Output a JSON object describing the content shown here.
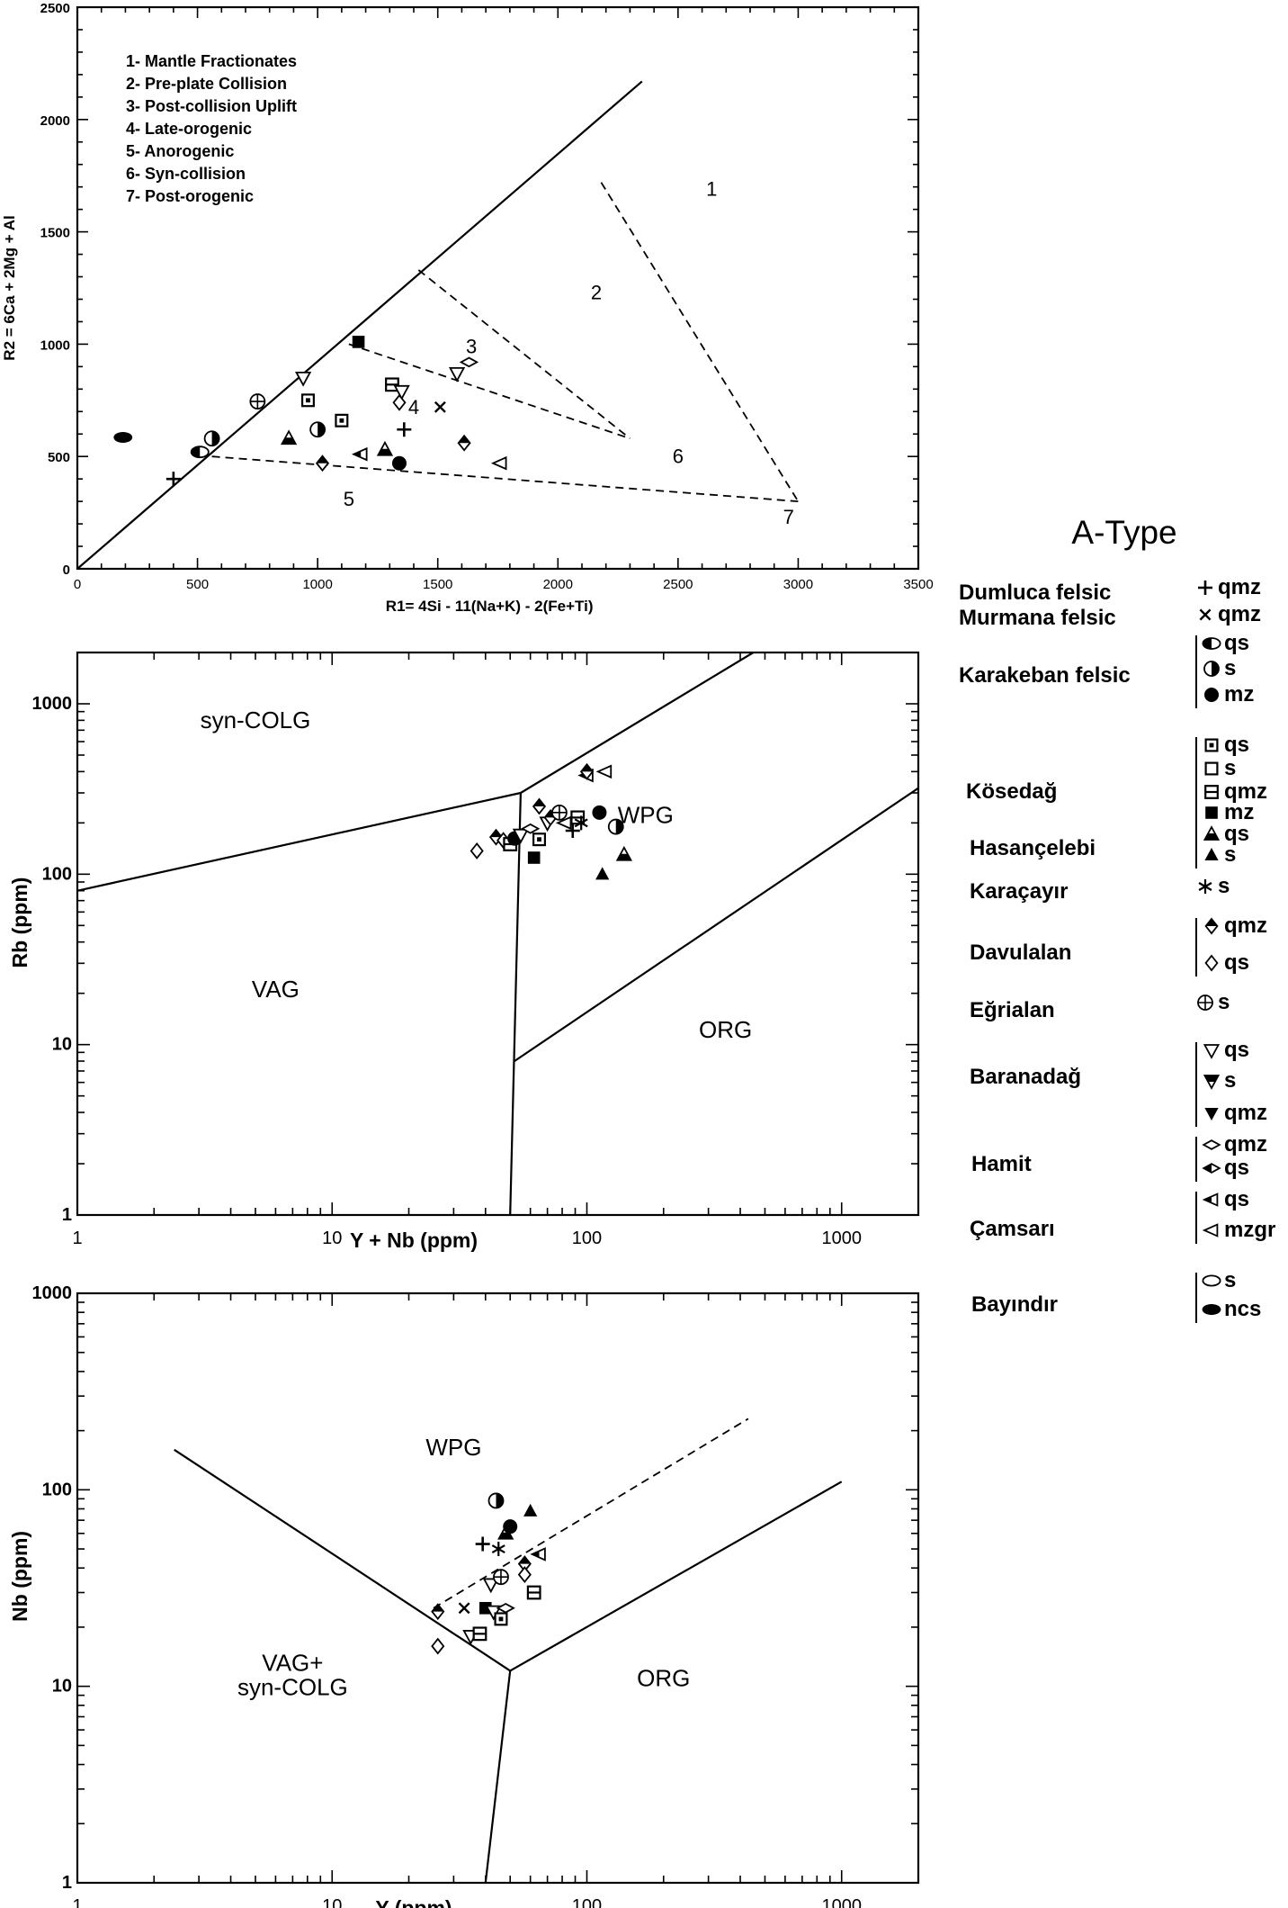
{
  "chart_data": [
    {
      "type": "scatter",
      "title": "",
      "xlabel": "R1= 4Si - 11(Na+K) - 2(Fe+Ti)",
      "ylabel": "R2 = 6Ca + 2Mg + Al",
      "xlim": [
        0,
        3500
      ],
      "ylim": [
        0,
        2500
      ],
      "xticks": [
        "0",
        "500",
        "1000",
        "1500",
        "2000",
        "2500",
        "3000",
        "3500"
      ],
      "yticks": [
        "0",
        "500",
        "1000",
        "1500",
        "2000",
        "2500"
      ],
      "legend": [
        "1- Mantle Fractionates",
        "2- Pre-plate Collision",
        "3- Post-collision Uplift",
        "4- Late-orogenic",
        "5- Anorogenic",
        "6- Syn-collision",
        "7- Post-orogenic"
      ],
      "field_labels": [
        {
          "text": "1",
          "x": 2640,
          "y": 1660
        },
        {
          "text": "2",
          "x": 2160,
          "y": 1200
        },
        {
          "text": "3",
          "x": 1640,
          "y": 960
        },
        {
          "text": "4",
          "x": 1400,
          "y": 690
        },
        {
          "text": "5",
          "x": 1130,
          "y": 280
        },
        {
          "text": "6",
          "x": 2500,
          "y": 470
        },
        {
          "text": "7",
          "x": 2960,
          "y": 200
        }
      ],
      "lines": [
        {
          "style": "solid",
          "points": [
            [
              0,
              0
            ],
            [
              2350,
              2170
            ]
          ]
        },
        {
          "style": "dashed",
          "points": [
            [
              1130,
              1000
            ],
            [
              2300,
              580
            ]
          ]
        },
        {
          "style": "dashed",
          "points": [
            [
              1420,
              1330
            ],
            [
              2300,
              580
            ]
          ]
        },
        {
          "style": "dashed",
          "points": [
            [
              2180,
              1720
            ],
            [
              3000,
              300
            ]
          ]
        },
        {
          "style": "dashed",
          "points": [
            [
              560,
              500
            ],
            [
              3000,
              300
            ]
          ]
        }
      ],
      "points": [
        {
          "x": 190,
          "y": 585,
          "s": "filled-ellipse"
        },
        {
          "x": 510,
          "y": 520,
          "s": "half-ellipse"
        },
        {
          "x": 560,
          "y": 580,
          "s": "half-circle"
        },
        {
          "x": 400,
          "y": 400,
          "s": "plus"
        },
        {
          "x": 750,
          "y": 745,
          "s": "circle-plus"
        },
        {
          "x": 940,
          "y": 850,
          "s": "tri-down-open"
        },
        {
          "x": 960,
          "y": 750,
          "s": "square-dot"
        },
        {
          "x": 1000,
          "y": 620,
          "s": "half-circle"
        },
        {
          "x": 1100,
          "y": 660,
          "s": "square-dot"
        },
        {
          "x": 1170,
          "y": 1010,
          "s": "square-filled"
        },
        {
          "x": 1310,
          "y": 820,
          "s": "square-lined"
        },
        {
          "x": 880,
          "y": 580,
          "s": "tri-half"
        },
        {
          "x": 1020,
          "y": 470,
          "s": "diamond-half"
        },
        {
          "x": 1180,
          "y": 510,
          "s": "tri-left-half"
        },
        {
          "x": 1280,
          "y": 530,
          "s": "tri-half"
        },
        {
          "x": 1340,
          "y": 470,
          "s": "filled-circle"
        },
        {
          "x": 1350,
          "y": 790,
          "s": "tri-down-open"
        },
        {
          "x": 1340,
          "y": 740,
          "s": "diamond-open"
        },
        {
          "x": 1360,
          "y": 620,
          "s": "plus"
        },
        {
          "x": 1510,
          "y": 720,
          "s": "x"
        },
        {
          "x": 1580,
          "y": 870,
          "s": "tri-down-open"
        },
        {
          "x": 1630,
          "y": 920,
          "s": "hamit-open"
        },
        {
          "x": 1610,
          "y": 560,
          "s": "diamond-half"
        },
        {
          "x": 1760,
          "y": 470,
          "s": "tri-left-open"
        }
      ]
    },
    {
      "type": "scatter",
      "title": "",
      "xlabel": "Y + Nb (ppm)",
      "ylabel": "Rb (ppm)",
      "xscale": "log",
      "yscale": "log",
      "xlim": [
        1,
        2000
      ],
      "ylim": [
        1,
        2000
      ],
      "xticks": [
        "1",
        "10",
        "100",
        "1000"
      ],
      "yticks": [
        "1",
        "10",
        "100",
        "1000"
      ],
      "field_labels": [
        {
          "text": "syn-COLG",
          "x": 5,
          "y": 720
        },
        {
          "text": "WPG",
          "x": 170,
          "y": 200
        },
        {
          "text": "VAG",
          "x": 6,
          "y": 19
        },
        {
          "text": "ORG",
          "x": 350,
          "y": 11
        }
      ],
      "lines": [
        {
          "style": "solid",
          "points": [
            [
              1,
              80
            ],
            [
              55,
              300
            ]
          ]
        },
        {
          "style": "solid",
          "points": [
            [
              55,
              300
            ],
            [
              50,
              1
            ]
          ]
        },
        {
          "style": "solid",
          "points": [
            [
              55,
              300
            ],
            [
              450,
              2000
            ]
          ]
        },
        {
          "style": "solid",
          "points": [
            [
              52,
              8
            ],
            [
              2000,
              320
            ]
          ]
        }
      ],
      "points": [
        {
          "x": 37,
          "y": 137,
          "s": "diamond-open"
        },
        {
          "x": 44,
          "y": 165,
          "s": "diamond-half"
        },
        {
          "x": 47,
          "y": 158,
          "s": "diamond-open"
        },
        {
          "x": 50,
          "y": 150,
          "s": "square-lined"
        },
        {
          "x": 52,
          "y": 162,
          "s": "filled-circle"
        },
        {
          "x": 55,
          "y": 170,
          "s": "tri-down-open"
        },
        {
          "x": 60,
          "y": 185,
          "s": "hamit-open"
        },
        {
          "x": 62,
          "y": 125,
          "s": "square-filled"
        },
        {
          "x": 65,
          "y": 160,
          "s": "square-dot"
        },
        {
          "x": 65,
          "y": 250,
          "s": "diamond-half"
        },
        {
          "x": 70,
          "y": 200,
          "s": "tri-down-open"
        },
        {
          "x": 72,
          "y": 215,
          "s": "diamond-half"
        },
        {
          "x": 78,
          "y": 230,
          "s": "circle-plus"
        },
        {
          "x": 82,
          "y": 200,
          "s": "tri-left-open"
        },
        {
          "x": 88,
          "y": 180,
          "s": "plus"
        },
        {
          "x": 92,
          "y": 215,
          "s": "square-lined"
        },
        {
          "x": 95,
          "y": 200,
          "s": "star"
        },
        {
          "x": 100,
          "y": 380,
          "s": "tri-left-half"
        },
        {
          "x": 100,
          "y": 400,
          "s": "diamond-half"
        },
        {
          "x": 118,
          "y": 400,
          "s": "tri-left-open"
        },
        {
          "x": 112,
          "y": 230,
          "s": "filled-circle"
        },
        {
          "x": 130,
          "y": 190,
          "s": "half-circle"
        },
        {
          "x": 140,
          "y": 130,
          "s": "tri-half"
        },
        {
          "x": 115,
          "y": 100,
          "s": "tri-filled"
        }
      ]
    },
    {
      "type": "scatter",
      "title": "",
      "xlabel": "Y (ppm)",
      "ylabel": "Nb (ppm)",
      "xscale": "log",
      "yscale": "log",
      "xlim": [
        1,
        2000
      ],
      "ylim": [
        1,
        1000
      ],
      "xticks": [
        "1",
        "10",
        "100",
        "1000"
      ],
      "yticks": [
        "1",
        "10",
        "100",
        "1000"
      ],
      "field_labels": [
        {
          "text": "WPG",
          "x": 30,
          "y": 150
        },
        {
          "text": "VAG+",
          "x": 7,
          "y": 12
        },
        {
          "text": "syn-COLG",
          "x": 7,
          "y": 9
        },
        {
          "text": "ORG",
          "x": 200,
          "y": 10
        }
      ],
      "lines": [
        {
          "style": "solid",
          "points": [
            [
              2.4,
              160
            ],
            [
              50,
              12
            ]
          ]
        },
        {
          "style": "solid",
          "points": [
            [
              50,
              12
            ],
            [
              1000,
              110
            ]
          ]
        },
        {
          "style": "solid",
          "points": [
            [
              50,
              12
            ],
            [
              40,
              1
            ]
          ]
        },
        {
          "style": "dashed",
          "points": [
            [
              25,
              25
            ],
            [
              430,
              230
            ]
          ]
        }
      ],
      "points": [
        {
          "x": 26,
          "y": 16,
          "s": "diamond-open"
        },
        {
          "x": 26,
          "y": 24,
          "s": "diamond-half"
        },
        {
          "x": 33,
          "y": 25,
          "s": "x"
        },
        {
          "x": 35,
          "y": 18,
          "s": "tri-down-open"
        },
        {
          "x": 38,
          "y": 18.5,
          "s": "square-lined"
        },
        {
          "x": 40,
          "y": 25,
          "s": "square-filled"
        },
        {
          "x": 43,
          "y": 24,
          "s": "tri-down-open"
        },
        {
          "x": 42,
          "y": 33,
          "s": "tri-down-open"
        },
        {
          "x": 46,
          "y": 22,
          "s": "square-dot"
        },
        {
          "x": 48,
          "y": 25,
          "s": "hamit-open"
        },
        {
          "x": 46,
          "y": 36,
          "s": "circle-plus"
        },
        {
          "x": 39,
          "y": 53,
          "s": "plus"
        },
        {
          "x": 45,
          "y": 50,
          "s": "star"
        },
        {
          "x": 44,
          "y": 88,
          "s": "half-circle"
        },
        {
          "x": 48,
          "y": 60,
          "s": "tri-half"
        },
        {
          "x": 50,
          "y": 65,
          "s": "filled-circle"
        },
        {
          "x": 57,
          "y": 42,
          "s": "diamond-half"
        },
        {
          "x": 57,
          "y": 37,
          "s": "diamond-open"
        },
        {
          "x": 60,
          "y": 78,
          "s": "tri-filled"
        },
        {
          "x": 62,
          "y": 30,
          "s": "square-lined"
        },
        {
          "x": 65,
          "y": 47,
          "s": "tri-left-half"
        }
      ]
    }
  ],
  "legend_panel": {
    "title": "A-Type",
    "groups": [
      {
        "name": "Dumluca felsic",
        "entries": [
          {
            "sym": "plus",
            "label": "qmz"
          }
        ]
      },
      {
        "name": "Murmana felsic",
        "entries": [
          {
            "sym": "x",
            "label": "qmz"
          }
        ]
      },
      {
        "name": "Karakeban felsic",
        "entries": [
          {
            "sym": "half-ellipse",
            "label": "qs"
          },
          {
            "sym": "half-circle",
            "label": "s"
          },
          {
            "sym": "filled-circle",
            "label": "mz"
          }
        ]
      },
      {
        "name": "Kösedağ",
        "entries": [
          {
            "sym": "square-dot",
            "label": "qs"
          },
          {
            "sym": "square-open",
            "label": "s"
          },
          {
            "sym": "square-lined",
            "label": "qmz"
          },
          {
            "sym": "square-filled",
            "label": "mz"
          }
        ]
      },
      {
        "name": "Hasançelebi",
        "entries": [
          {
            "sym": "tri-half",
            "label": "qs"
          },
          {
            "sym": "tri-filled",
            "label": "s"
          }
        ]
      },
      {
        "name": "Karaçayır",
        "entries": [
          {
            "sym": "star",
            "label": "s"
          }
        ]
      },
      {
        "name": "Davulalan",
        "entries": [
          {
            "sym": "diamond-half",
            "label": "qmz"
          },
          {
            "sym": "diamond-open",
            "label": "qs"
          }
        ]
      },
      {
        "name": "Eğrialan",
        "entries": [
          {
            "sym": "circle-plus",
            "label": "s"
          }
        ]
      },
      {
        "name": "Baranadağ",
        "entries": [
          {
            "sym": "tri-down-open",
            "label": "qs"
          },
          {
            "sym": "tri-down-half",
            "label": "s"
          },
          {
            "sym": "tri-down-filled",
            "label": "qmz"
          }
        ]
      },
      {
        "name": "Hamit",
        "entries": [
          {
            "sym": "hamit-open",
            "label": "qmz"
          },
          {
            "sym": "hamit-half",
            "label": "qs"
          }
        ]
      },
      {
        "name": "Çamsarı",
        "entries": [
          {
            "sym": "tri-left-half",
            "label": "qs"
          },
          {
            "sym": "tri-left-open",
            "label": "mzgr"
          }
        ]
      },
      {
        "name": "Bayındır",
        "entries": [
          {
            "sym": "ellipse-open",
            "label": "s"
          },
          {
            "sym": "filled-ellipse",
            "label": "ncs"
          }
        ]
      }
    ]
  }
}
